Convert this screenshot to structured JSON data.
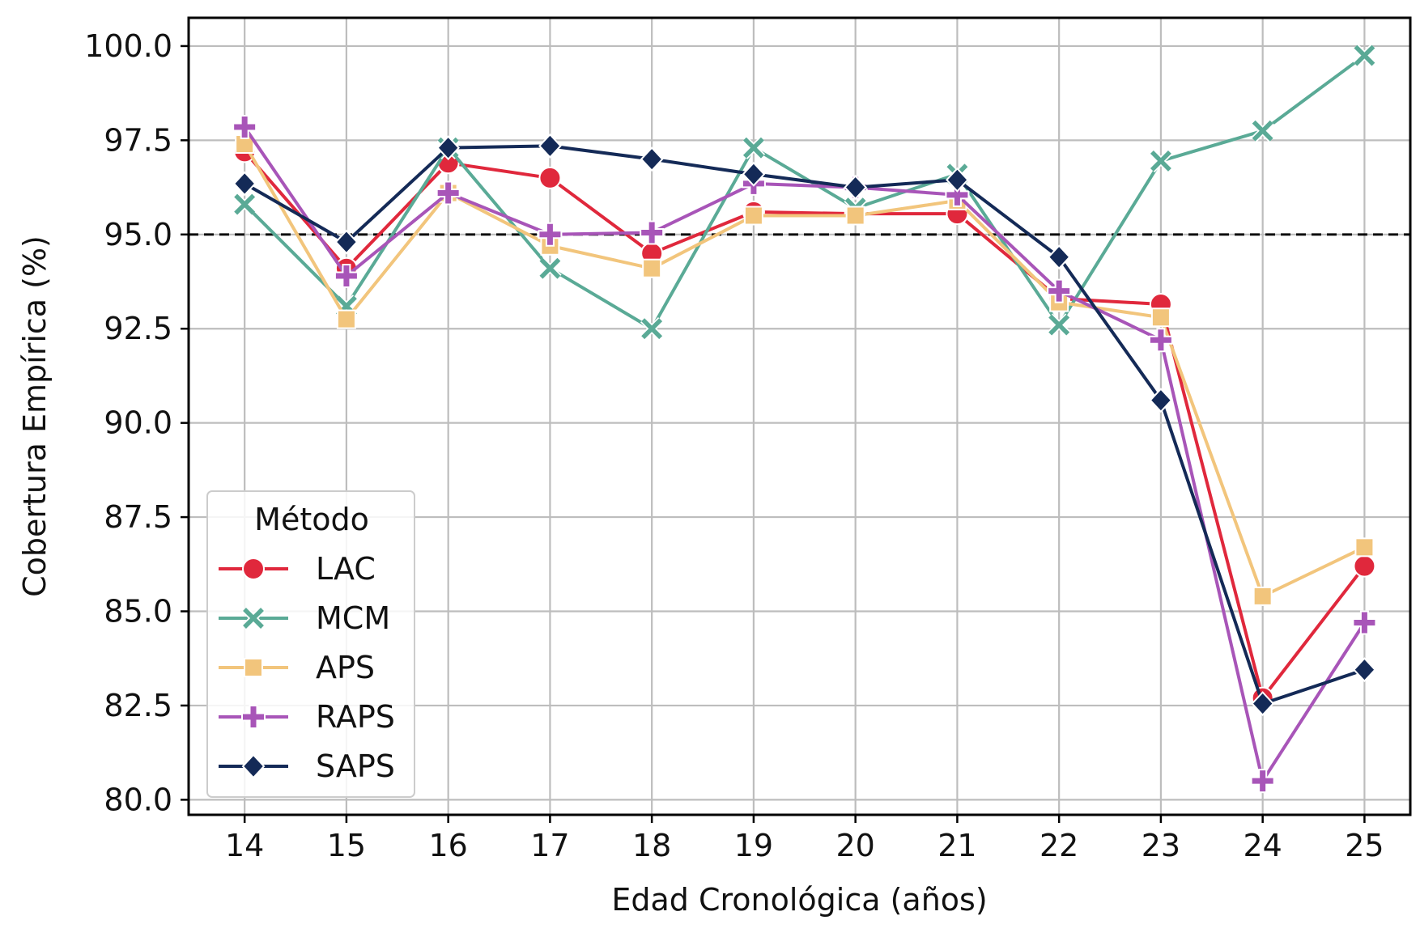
{
  "chart_data": {
    "type": "line",
    "title": "",
    "xlabel": "Edad Cronológica (años)",
    "ylabel": "Cobertura Empírica (%)",
    "x": [
      14,
      15,
      16,
      17,
      18,
      19,
      20,
      21,
      22,
      23,
      24,
      25
    ],
    "x_tick_labels": [
      "14",
      "15",
      "16",
      "17",
      "18",
      "19",
      "20",
      "21",
      "22",
      "23",
      "24",
      "25"
    ],
    "ylim": [
      79.6,
      100.75
    ],
    "y_ticks": [
      80.0,
      82.5,
      85.0,
      87.5,
      90.0,
      92.5,
      95.0,
      97.5,
      100.0
    ],
    "y_tick_labels": [
      "80.0",
      "82.5",
      "85.0",
      "87.5",
      "90.0",
      "92.5",
      "95.0",
      "97.5",
      "100.0"
    ],
    "grid": true,
    "reference_line": {
      "y": 95.0,
      "style": "dashed",
      "color": "#000000"
    },
    "legend": {
      "title": "Método",
      "placement": "lower-left"
    },
    "series": [
      {
        "name": "LAC",
        "color": "#e0283c",
        "marker": "circle",
        "values": [
          97.2,
          94.1,
          96.9,
          96.5,
          94.5,
          95.6,
          95.55,
          95.55,
          93.3,
          93.15,
          82.7,
          86.2
        ]
      },
      {
        "name": "MCM",
        "color": "#5aaa96",
        "marker": "x",
        "values": [
          95.8,
          93.1,
          97.3,
          94.1,
          92.5,
          97.3,
          95.7,
          96.6,
          92.6,
          96.95,
          97.75,
          99.75
        ]
      },
      {
        "name": "APS",
        "color": "#f2c57c",
        "marker": "square",
        "values": [
          97.4,
          92.75,
          96.1,
          94.7,
          94.1,
          95.5,
          95.5,
          95.9,
          93.2,
          92.8,
          85.4,
          86.7
        ]
      },
      {
        "name": "RAPS",
        "color": "#a855b8",
        "marker": "plus",
        "values": [
          97.85,
          93.9,
          96.1,
          95.0,
          95.05,
          96.35,
          96.25,
          96.05,
          93.5,
          92.2,
          80.5,
          84.7
        ]
      },
      {
        "name": "SAPS",
        "color": "#142a57",
        "marker": "diamond",
        "values": [
          96.35,
          94.8,
          97.3,
          97.35,
          97.0,
          96.6,
          96.25,
          96.45,
          94.4,
          90.6,
          82.55,
          83.45
        ]
      }
    ]
  }
}
